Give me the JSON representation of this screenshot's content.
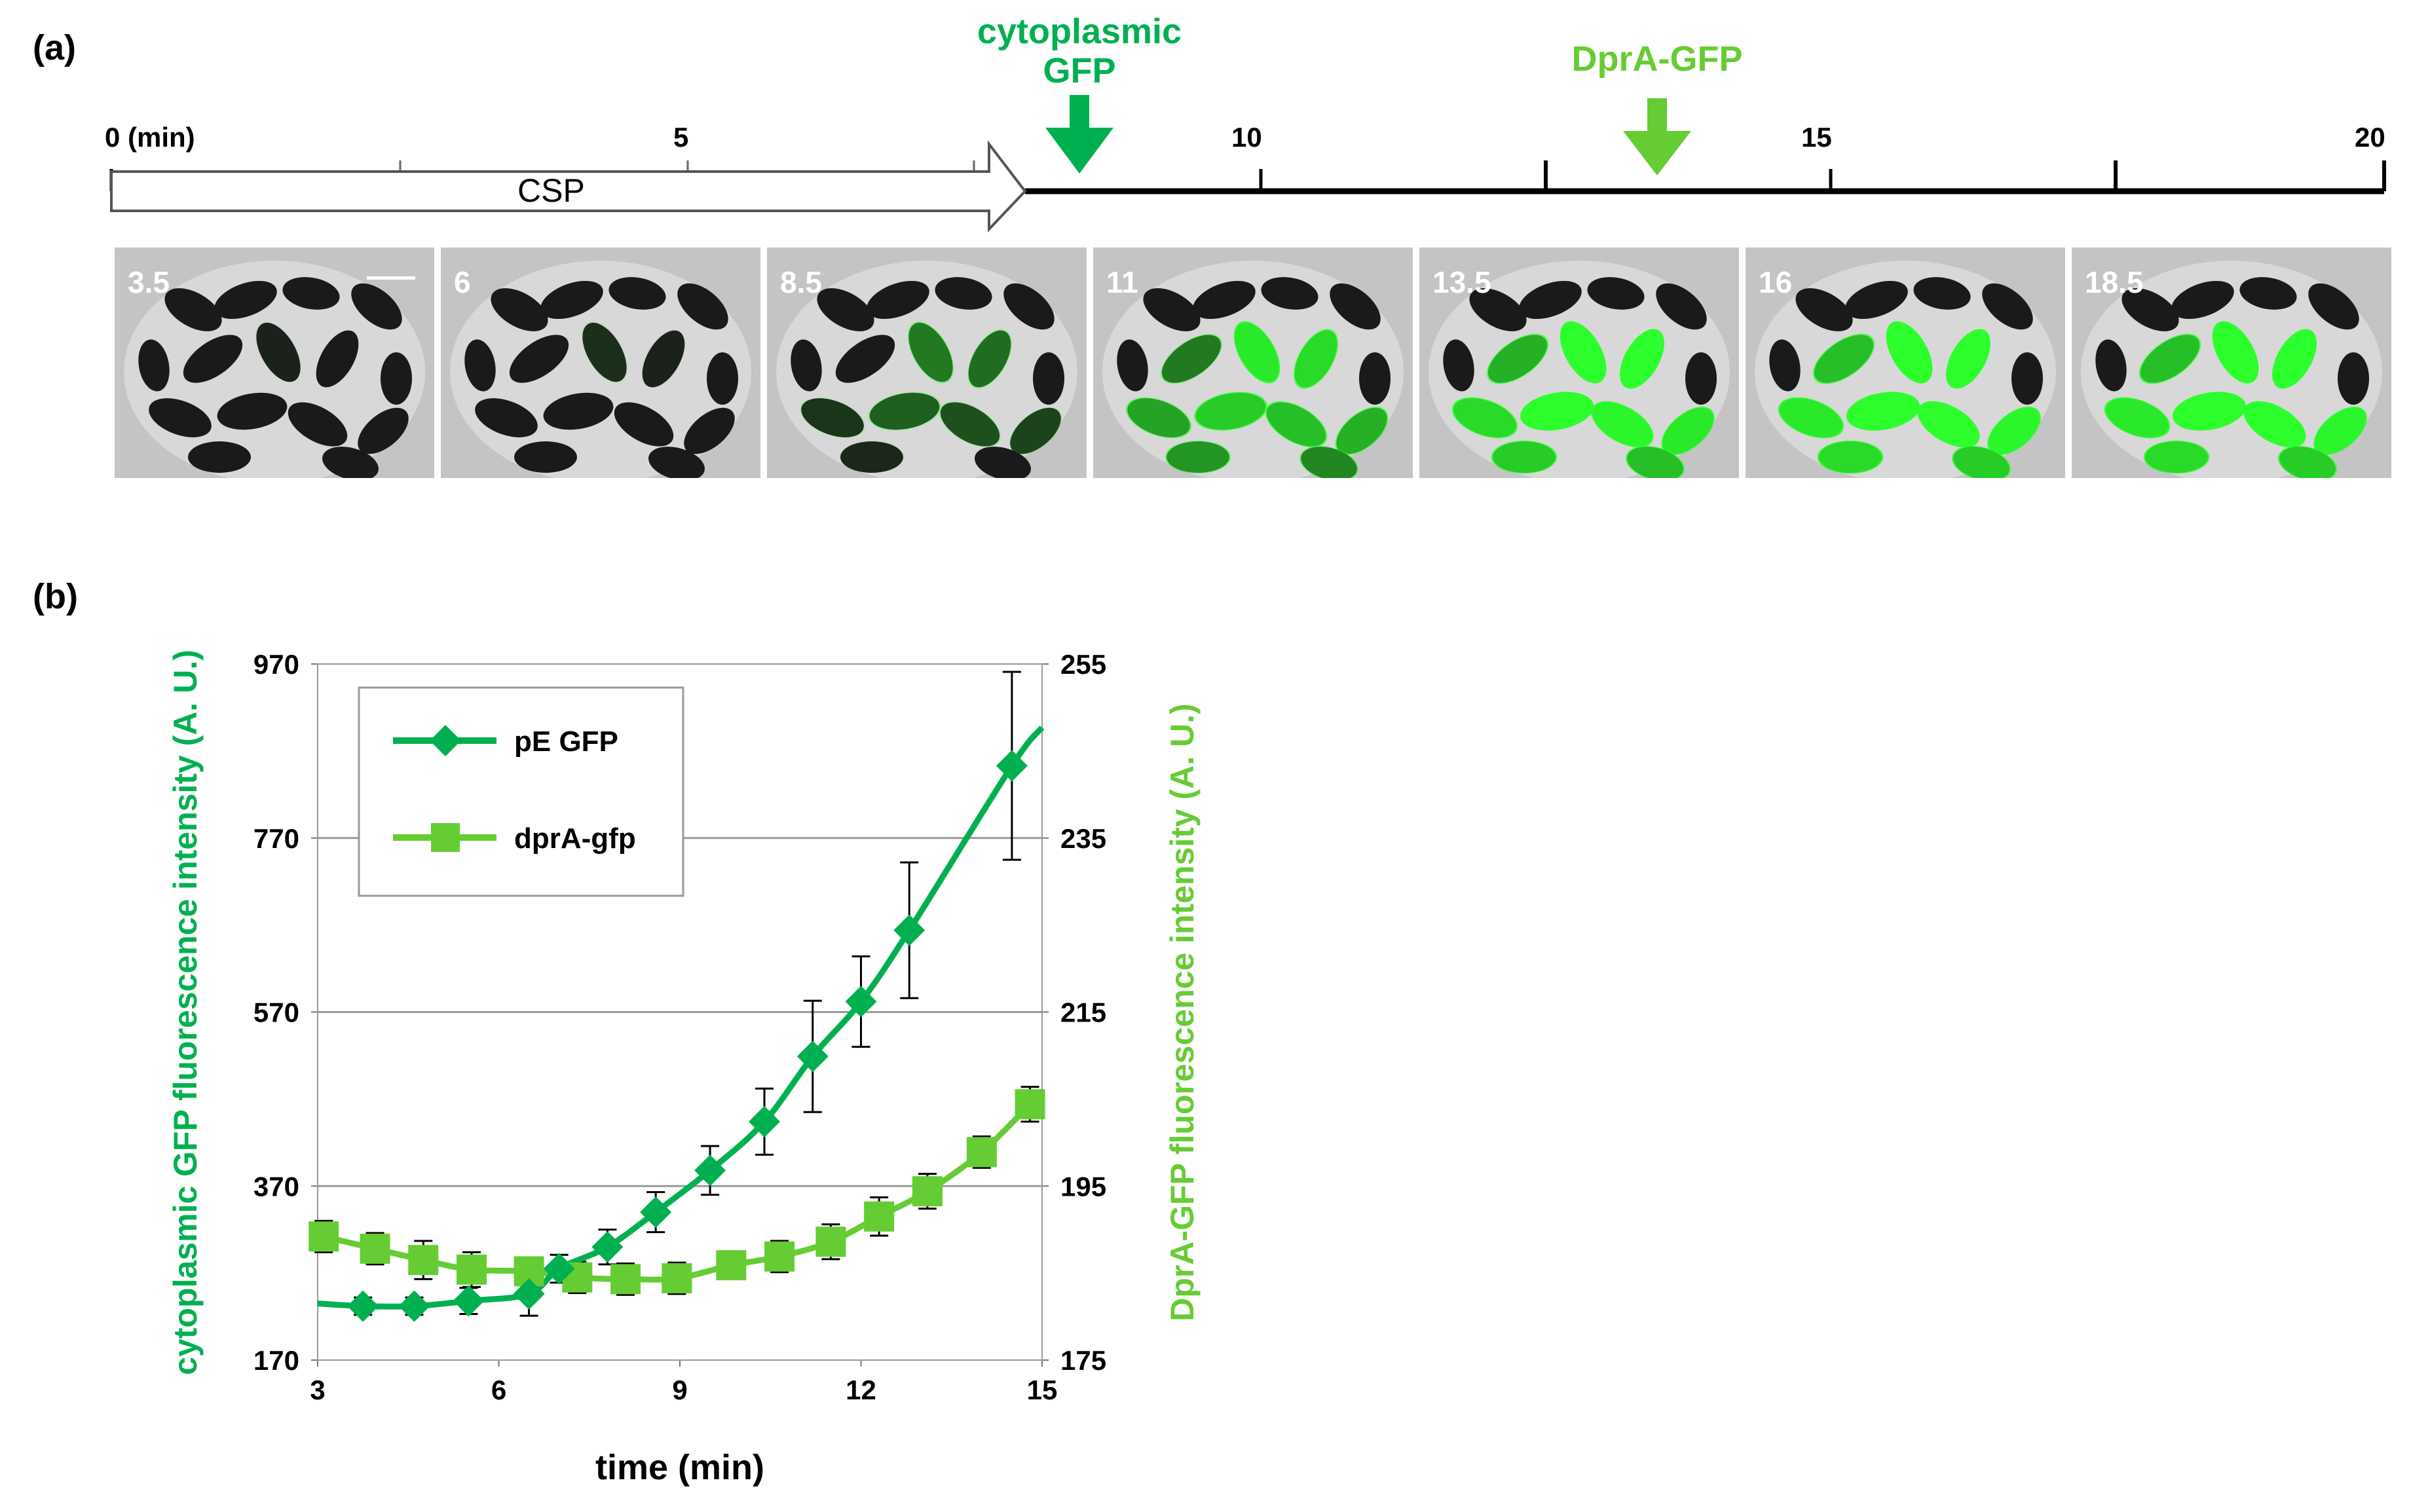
{
  "panel_a_label": "(a)",
  "panel_b_label": "(b)",
  "timeline": {
    "ticks": [
      {
        "label": "0 (min)",
        "value": 0
      },
      {
        "label": "5",
        "value": 5
      },
      {
        "label": "10",
        "value": 10
      },
      {
        "label": "15",
        "value": 15
      },
      {
        "label": "20",
        "value": 20
      }
    ],
    "csp_label": "CSP",
    "csp_end": 8,
    "gfp_arrow": {
      "label_line1": "cytoplasmic",
      "label_line2": "GFP",
      "time": 8.5,
      "color": "#00b050"
    },
    "dpra_arrow": {
      "label": "DprA-GFP",
      "time": 13.5,
      "color": "#66cc33"
    }
  },
  "frames": [
    {
      "time_label": "3.5",
      "green": 0.03
    },
    {
      "time_label": "6",
      "green": 0.08
    },
    {
      "time_label": "8.5",
      "green": 0.35
    },
    {
      "time_label": "11",
      "green": 0.75
    },
    {
      "time_label": "13.5",
      "green": 0.95
    },
    {
      "time_label": "16",
      "green": 1.0
    },
    {
      "time_label": "18.5",
      "green": 1.0
    }
  ],
  "chart_data": {
    "type": "line",
    "xlabel": "time (min)",
    "ylabel_left": "cytoplasmic GFP fluorescence intensity (A. U.)",
    "ylabel_right": "DprA-GFP  fluorescence intensity (A. U.)",
    "x_ticks": [
      3,
      6,
      9,
      12,
      15
    ],
    "xlim": [
      3,
      15
    ],
    "y_left_ticks": [
      170,
      370,
      570,
      770,
      970
    ],
    "ylim_left": [
      170,
      970
    ],
    "y_right_ticks": [
      175,
      195,
      215,
      235,
      255
    ],
    "ylim_right": [
      175,
      255
    ],
    "grid": true,
    "legend_position": "top-left",
    "series": [
      {
        "name": "pE GFP",
        "axis": "left",
        "color": "#00b050",
        "marker": "diamond",
        "x": [
          3.0,
          3.75,
          4.6,
          5.5,
          6.5,
          7.0,
          7.8,
          8.6,
          9.5,
          10.4,
          11.2,
          12.0,
          12.8,
          14.5,
          15.0
        ],
        "y": [
          235,
          232,
          232,
          238,
          246,
          275,
          300,
          340,
          388,
          444,
          519,
          582,
          664,
          853,
          897
        ],
        "err": [
          0,
          10,
          10,
          15,
          25,
          16,
          20,
          23,
          28,
          38,
          64,
          52,
          78,
          108,
          0
        ],
        "marker_shown": [
          false,
          true,
          true,
          true,
          true,
          true,
          true,
          true,
          true,
          true,
          true,
          true,
          true,
          true,
          false
        ]
      },
      {
        "name": "dprA-gfp",
        "axis": "right",
        "color": "#66cc33",
        "marker": "square",
        "x": [
          3.1,
          3.95,
          4.75,
          5.55,
          6.5,
          7.3,
          8.1,
          8.95,
          9.85,
          10.65,
          11.5,
          12.3,
          13.1,
          14.0,
          14.8
        ],
        "y": [
          189.2,
          187.8,
          186.5,
          185.4,
          185.2,
          184.5,
          184.3,
          184.4,
          185.9,
          186.9,
          188.6,
          191.5,
          194.4,
          198.9,
          204.4
        ],
        "err": [
          1.8,
          1.8,
          2.2,
          2.0,
          1.5,
          1.8,
          1.8,
          1.8,
          1.5,
          1.8,
          2.0,
          2.2,
          2.0,
          1.8,
          2.0
        ]
      }
    ]
  }
}
